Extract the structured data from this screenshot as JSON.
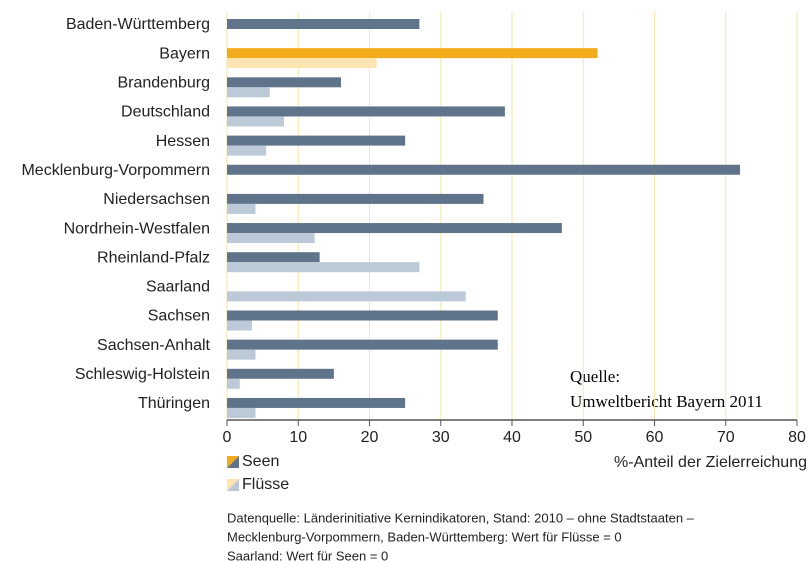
{
  "chart_data": {
    "type": "hbar",
    "categories": [
      "Baden-Württemberg",
      "Bayern",
      "Brandenburg",
      "Deutschland",
      "Hessen",
      "Mecklenburg-Vorpommern",
      "Niedersachsen",
      "Nordrhein-Westfalen",
      "Rheinland-Pfalz",
      "Saarland",
      "Sachsen",
      "Sachsen-Anhalt",
      "Schleswig-Holstein",
      "Thüringen"
    ],
    "series": [
      {
        "name": "Seen",
        "color": "#5f748b",
        "highlight_color": "#f2ab1a",
        "values": [
          27,
          52,
          16,
          39,
          25,
          72,
          36,
          47,
          13,
          0,
          38,
          38,
          15,
          25
        ]
      },
      {
        "name": "Flüsse",
        "color": "#bccad7",
        "highlight_color": "#fde4b0",
        "values": [
          0,
          21,
          6,
          8,
          5.5,
          0,
          4,
          12.3,
          27,
          33.5,
          3.5,
          4,
          1.8,
          4
        ]
      }
    ],
    "highlight_category": "Bayern",
    "xlim": [
      0,
      80
    ],
    "xticks": [
      0,
      10,
      20,
      30,
      40,
      50,
      60,
      70,
      80
    ],
    "grid": true,
    "xlabel": "%-Anteil der Zielerreichung",
    "annotation": [
      "Quelle:",
      "Umweltbericht Bayern 2011"
    ],
    "notes": [
      "Datenquelle: Länderinitiative Kernindikatoren, Stand: 2010 – ohne Stadtstaaten –",
      "Mecklenburg-Vorpommern, Baden-Württemberg: Wert für Flüsse = 0",
      "Saarland: Wert für Seen = 0"
    ]
  }
}
